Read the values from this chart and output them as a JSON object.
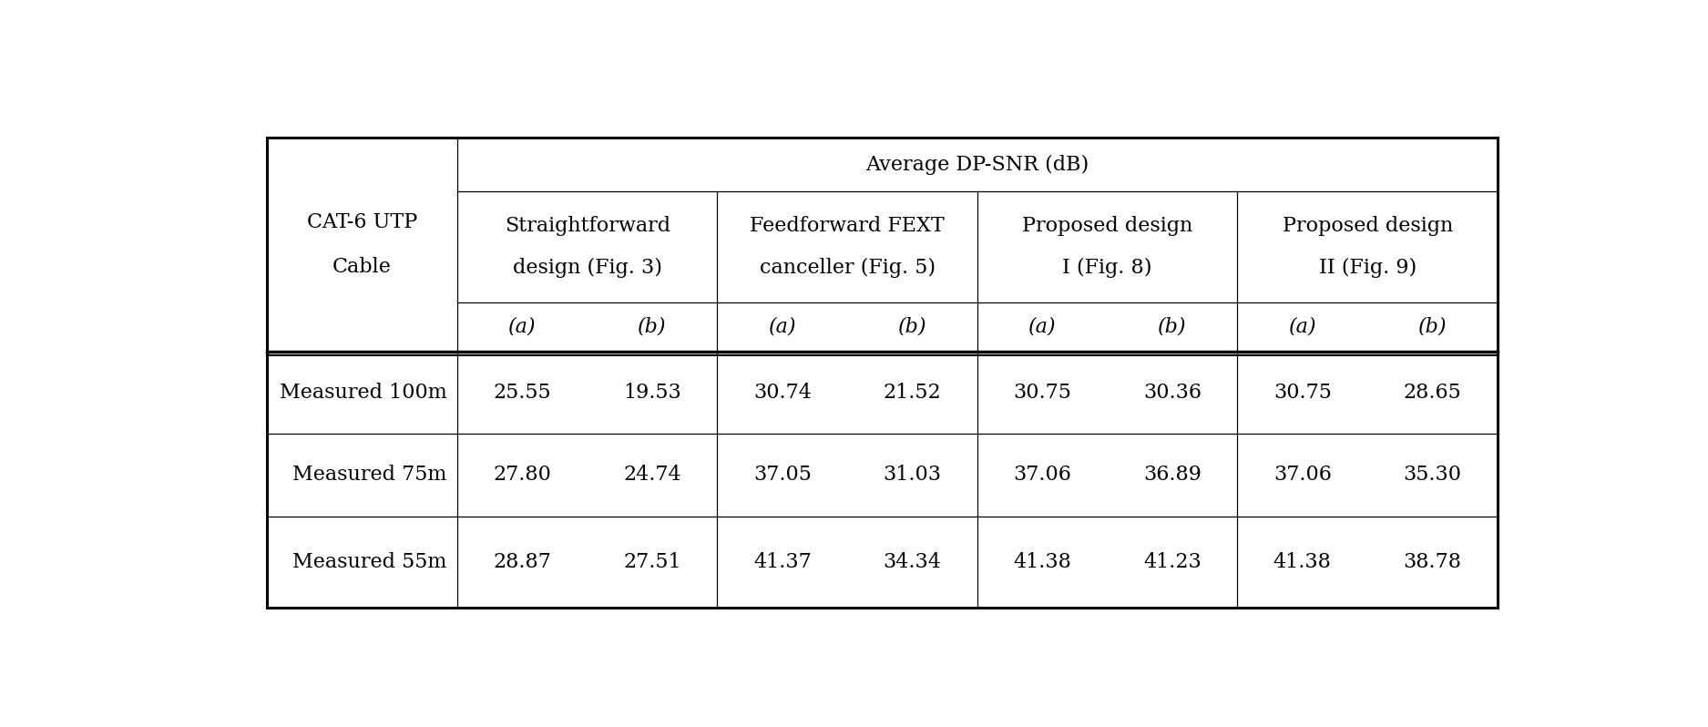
{
  "title": "Average DP-SNR (dB)",
  "group_headers": [
    {
      "line1": "Straightforward",
      "line2": "design (Fig. 3)",
      "cols": [
        1,
        2
      ]
    },
    {
      "line1": "Feedforward FEXT",
      "line2": "canceller (Fig. 5)",
      "cols": [
        3,
        4
      ]
    },
    {
      "line1": "Proposed design",
      "line2": "I (Fig. 8)",
      "cols": [
        5,
        6
      ]
    },
    {
      "line1": "Proposed design",
      "line2": "II (Fig. 9)",
      "cols": [
        7,
        8
      ]
    }
  ],
  "ab_labels": [
    "(a)",
    "(b)",
    "(a)",
    "(b)",
    "(a)",
    "(b)",
    "(a)",
    "(b)"
  ],
  "rows": [
    [
      "Measured 100m",
      "25.55",
      "19.53",
      "30.74",
      "21.52",
      "30.75",
      "30.36",
      "30.75",
      "28.65"
    ],
    [
      "Measured 75m",
      "27.80",
      "24.74",
      "37.05",
      "31.03",
      "37.06",
      "36.89",
      "37.06",
      "35.30"
    ],
    [
      "Measured 55m",
      "28.87",
      "27.51",
      "41.37",
      "34.34",
      "41.38",
      "41.23",
      "41.38",
      "38.78"
    ]
  ],
  "cat6_line1": "CAT-6 UTP",
  "cat6_line2": "Cable",
  "bg_color": "#ffffff",
  "line_color": "#000000",
  "text_color": "#000000",
  "font_family": "DejaVu Serif",
  "fontsize": 16
}
